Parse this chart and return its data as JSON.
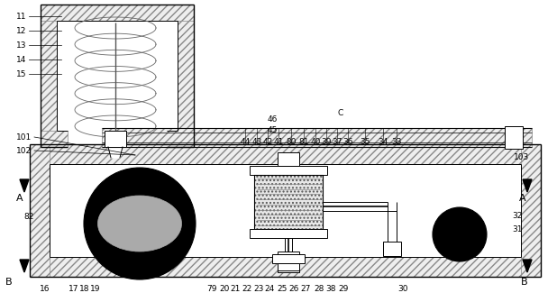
{
  "bg_color": "#ffffff",
  "fig_width": 6.18,
  "fig_height": 3.35,
  "dpi": 100,
  "labels": {
    "top_left_numbered": [
      [
        "11",
        18,
        14
      ],
      [
        "12",
        18,
        30
      ],
      [
        "13",
        18,
        46
      ],
      [
        "14",
        18,
        62
      ],
      [
        "15",
        18,
        78
      ]
    ],
    "left_side": [
      [
        "101",
        18,
        148
      ],
      [
        "102",
        18,
        163
      ]
    ],
    "top_row": [
      [
        "46",
        302,
        128
      ],
      [
        "45",
        302,
        140
      ],
      [
        "C",
        378,
        121
      ],
      [
        "44",
        272,
        153
      ],
      [
        "43",
        285,
        153
      ],
      [
        "42",
        297,
        153
      ],
      [
        "41",
        309,
        153
      ],
      [
        "80",
        323,
        153
      ],
      [
        "81",
        337,
        153
      ],
      [
        "40",
        350,
        153
      ],
      [
        "39",
        362,
        153
      ],
      [
        "37",
        374,
        153
      ],
      [
        "36",
        386,
        153
      ],
      [
        "35",
        405,
        153
      ],
      [
        "34",
        425,
        153
      ],
      [
        "33",
        440,
        153
      ]
    ],
    "right_side": [
      [
        "103",
        570,
        170
      ],
      [
        "32",
        568,
        235
      ],
      [
        "31",
        568,
        250
      ]
    ],
    "bottom_row": [
      [
        "16",
        50,
        316
      ],
      [
        "17",
        82,
        316
      ],
      [
        "18",
        94,
        316
      ],
      [
        "19",
        106,
        316
      ],
      [
        "79",
        235,
        316
      ],
      [
        "20",
        249,
        316
      ],
      [
        "21",
        261,
        316
      ],
      [
        "22",
        274,
        316
      ],
      [
        "23",
        287,
        316
      ],
      [
        "24",
        299,
        316
      ],
      [
        "25",
        313,
        316
      ],
      [
        "26",
        326,
        316
      ],
      [
        "27",
        339,
        316
      ],
      [
        "28",
        354,
        316
      ],
      [
        "38",
        367,
        316
      ],
      [
        "29",
        381,
        316
      ],
      [
        "30",
        447,
        316
      ],
      [
        "82",
        32,
        236
      ]
    ],
    "arrows_A": [
      [
        "A",
        22,
        215
      ],
      [
        "A",
        580,
        215
      ]
    ],
    "arrows_B": [
      [
        "B",
        10,
        308
      ],
      [
        "B",
        582,
        308
      ]
    ]
  }
}
